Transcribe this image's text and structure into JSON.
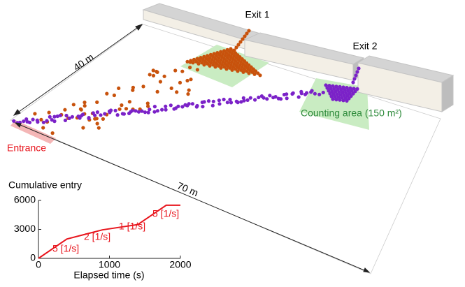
{
  "scene": {
    "exit_1": "Exit 1",
    "exit_2": "Exit 2",
    "width_label": "40 m",
    "length_label": "70 m",
    "counting_area": "Counting area (150 m²)",
    "entrance": "Entrance"
  },
  "chart_data": {
    "type": "line",
    "ylabel": "Cumulative entry",
    "xlabel": "Elapsed time (s)",
    "x": [
      0,
      400,
      900,
      1400,
      1800,
      2000
    ],
    "series": [
      {
        "name": "Cumulative entry",
        "color": "#e8141c",
        "values": [
          0,
          2000,
          2950,
          3500,
          5500,
          5500
        ]
      }
    ],
    "xlim": [
      0,
      2000
    ],
    "xticks": [
      0,
      1000,
      2000
    ],
    "ylim": [
      0,
      6000
    ],
    "yticks": [
      0,
      3000,
      6000
    ],
    "annotations": [
      "5 [1/s]",
      "2 [1/s]",
      "1 [1/s]",
      "5 [1/s]"
    ]
  }
}
